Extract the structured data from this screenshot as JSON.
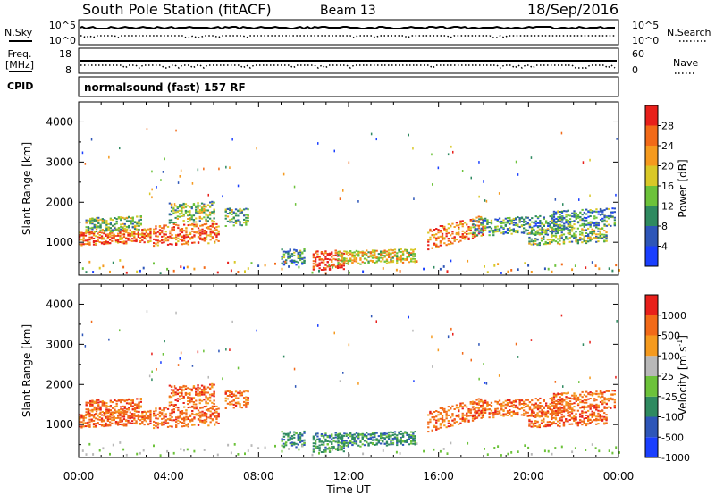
{
  "header": {
    "station": "South Pole Station (fitACF)",
    "beam": "Beam 13",
    "date": "18/Sep/2016"
  },
  "strips": {
    "nsky_label": "N.Sky",
    "nsky_ticks": [
      "10^5",
      "10^0"
    ],
    "nsearch_label": "N.Search",
    "nsearch_ticks": [
      "10^5",
      "10^0"
    ],
    "freq_label_1": "Freq.",
    "freq_label_2": "[MHz]",
    "freq_ticks": [
      "18",
      "8"
    ],
    "nave_label": "Nave",
    "nave_ticks": [
      "60",
      "0"
    ],
    "cpid_label": "CPID",
    "cpid_text": "normalsound (fast) 157 RF"
  },
  "chart_data": [
    {
      "type": "heatmap",
      "name": "power-panel",
      "ylabel": "Slant Range [km]",
      "yticks": [
        "1000",
        "2000",
        "3000",
        "4000"
      ],
      "ylim": [
        180,
        4500
      ],
      "xlim": [
        0,
        24
      ],
      "colorbar": {
        "label": "Power [dB]",
        "ticks": [
          "4",
          "8",
          "12",
          "16",
          "20",
          "24",
          "28"
        ],
        "colors": [
          "#1a3fff",
          "#2e56b8",
          "#2f8a60",
          "#6cc23a",
          "#d9c827",
          "#f59a1e",
          "#f26a18",
          "#e8201b"
        ]
      }
    },
    {
      "type": "heatmap",
      "name": "velocity-panel",
      "ylabel": "Slant Range [km]",
      "yticks": [
        "1000",
        "2000",
        "3000",
        "4000"
      ],
      "ylim": [
        180,
        4500
      ],
      "xlim": [
        0,
        24
      ],
      "colorbar": {
        "label": "Velocity [m s^-1]",
        "ticks": [
          "1000",
          "500",
          "100",
          "25",
          "-25",
          "-100",
          "-500",
          "-1000"
        ],
        "colors": [
          "#1a3fff",
          "#2e56b8",
          "#2f8a60",
          "#6cc23a",
          "#b8b8b8",
          "#f59a1e",
          "#f26a18",
          "#e8201b"
        ]
      }
    }
  ],
  "time_axis": {
    "ticks": [
      "00:00",
      "04:00",
      "08:00",
      "12:00",
      "16:00",
      "20:00",
      "00:00"
    ],
    "label": "Time UT"
  }
}
